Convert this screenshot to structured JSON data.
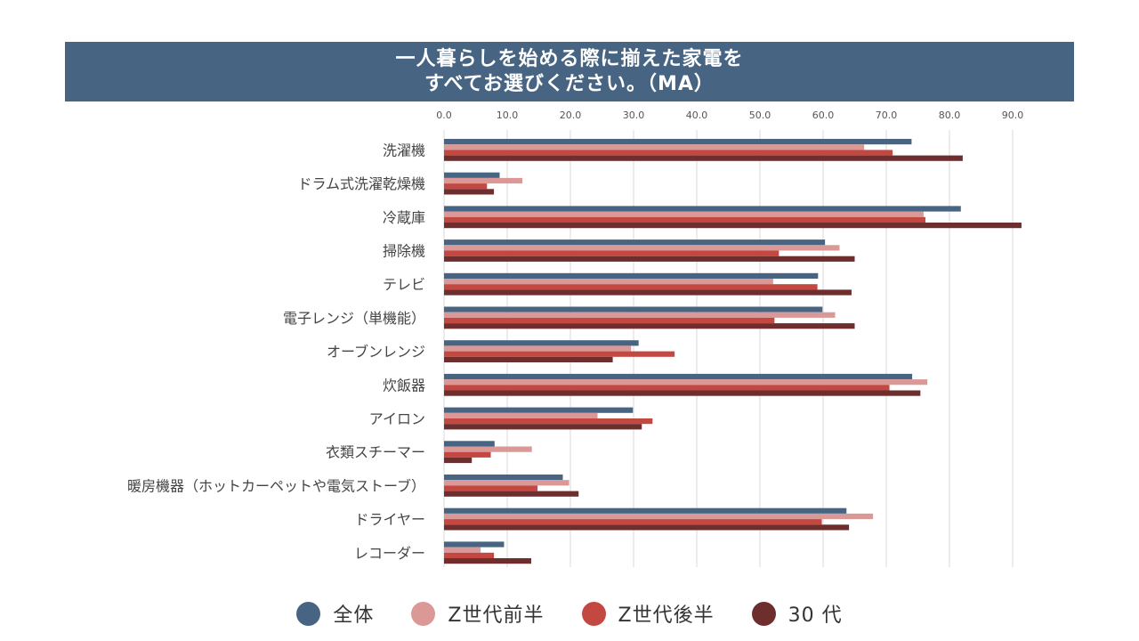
{
  "title": {
    "line1": "一人暮らしを始める際に揃えた家電を",
    "line2": "すべてお選びください。（MA）"
  },
  "chart_data": {
    "type": "bar",
    "orientation": "horizontal",
    "title": "一人暮らしを始める際に揃えた家電を すべてお選びください。（MA）",
    "categories": [
      "洗濯機",
      "ドラム式洗濯乾燥機",
      "冷蔵庫",
      "掃除機",
      "テレビ",
      "電子レンジ（単機能）",
      "オーブンレンジ",
      "炊飯器",
      "アイロン",
      "衣類スチーマー",
      "暖房機器（ホットカーペットや電気ストーブ）",
      "ドライヤー",
      "レコーダー"
    ],
    "xlim": [
      0,
      90
    ],
    "xticks": [
      "0.0",
      "10.0",
      "20.0",
      "30.0",
      "40.0",
      "50.0",
      "60.0",
      "70.0",
      "80.0",
      "90.0"
    ],
    "x_axis_position": "top",
    "grid": true,
    "legend_position": "bottom",
    "series": [
      {
        "name": "全体",
        "color": "#476482",
        "values": [
          74.0,
          8.8,
          81.8,
          60.3,
          59.2,
          59.9,
          30.8,
          74.1,
          29.9,
          8.0,
          18.8,
          63.7,
          9.5
        ]
      },
      {
        "name": "Z世代前半",
        "color": "#da9896",
        "values": [
          66.5,
          12.4,
          75.9,
          62.6,
          52.1,
          61.9,
          29.6,
          76.5,
          24.3,
          13.9,
          19.8,
          67.9,
          5.8
        ]
      },
      {
        "name": "Z世代後半",
        "color": "#c44842",
        "values": [
          71.0,
          6.8,
          76.2,
          53.0,
          59.1,
          52.3,
          36.5,
          70.5,
          33.0,
          7.4,
          14.8,
          59.8,
          7.9
        ]
      },
      {
        "name": "30 代",
        "color": "#6e2e2e",
        "values": [
          82.1,
          7.9,
          91.4,
          65.0,
          64.5,
          65.0,
          26.7,
          75.4,
          31.3,
          4.4,
          21.3,
          64.1,
          13.8
        ]
      }
    ]
  }
}
